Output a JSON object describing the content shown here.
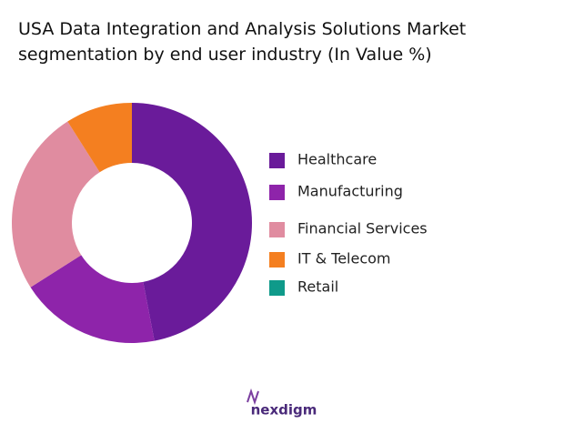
{
  "chart_data": {
    "type": "donut",
    "title": "USA Data Integration and Analysis Solutions Market segmentation by end user industry (In Value %)",
    "categories": [
      "Healthcare",
      "Manufacturing",
      "Financial Services",
      "IT & Telecom",
      "Retail"
    ],
    "values": [
      47,
      19,
      25,
      9,
      0
    ],
    "colors": [
      "#6a1b9a",
      "#8e24aa",
      "#e08ca0",
      "#f47f20",
      "#0f9a8a"
    ],
    "legend": "right"
  },
  "logo": "nexdigm"
}
